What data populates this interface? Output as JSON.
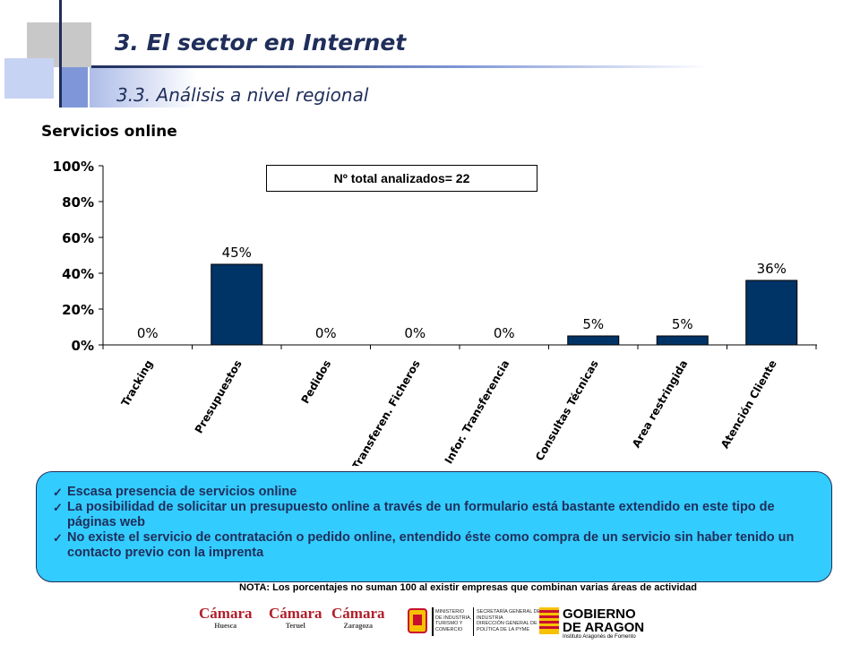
{
  "header": {
    "title": "3. El sector en Internet",
    "subtitle": "3.3. Análisis a nivel regional"
  },
  "section_heading": "Servicios online",
  "total_box": "Nº total analizados= 22",
  "chart_data": {
    "type": "bar",
    "categories": [
      "Tracking",
      "Presupuestos",
      "Pedidos",
      "Transferen. Ficheros",
      "Infor. Transferencia",
      "Consultas Técnicas",
      "Area restringida",
      "Atención Cliente"
    ],
    "values": [
      0,
      45,
      0,
      0,
      0,
      5,
      5,
      36
    ],
    "data_labels": [
      "0%",
      "45%",
      "0%",
      "0%",
      "0%",
      "5%",
      "5%",
      "36%"
    ],
    "yticks": [
      "0%",
      "20%",
      "40%",
      "60%",
      "80%",
      "100%"
    ],
    "ylim": [
      0,
      100
    ],
    "unit": "%",
    "bar_color": "#003366"
  },
  "notes": [
    "Escasa presencia de servicios online",
    "La posibilidad de solicitar un presupuesto online a través de un formulario está bastante extendido en este tipo de páginas web",
    "No existe el servicio de contratación o pedido online, entendido éste como compra de un servicio sin haber tenido un contacto previo con la imprenta"
  ],
  "footnote": "NOTA: Los porcentajes no suman 100 al existir empresas que combinan varias áreas de actividad",
  "logos": {
    "camara_brand": "Cámara",
    "camara_cities": [
      "Huesca",
      "Teruel",
      "Zaragoza"
    ],
    "ministry": [
      "MINISTERIO",
      "DE INDUSTRIA,",
      "TURISMO Y",
      "COMERCIO"
    ],
    "secretaria": [
      "SECRETARÍA GENERAL DE",
      "INDUSTRIA",
      "DIRECCIÓN GENERAL DE",
      "POLÍTICA DE LA PYME"
    ],
    "gobierno": [
      "GOBIERNO",
      "DE ARAGON"
    ],
    "gobierno_sub": "Instituto Aragonés de Fomento"
  },
  "colors": {
    "title": "#1f2e5a",
    "notes_bg": "#33ccff",
    "camara_red": "#b0202a",
    "aragon_red": "#c8102e",
    "aragon_yellow": "#f6c200"
  }
}
